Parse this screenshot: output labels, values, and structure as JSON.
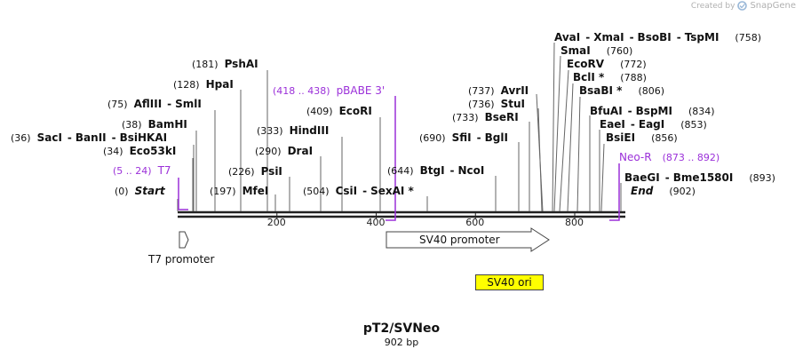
{
  "credit": {
    "created_by": "Created by",
    "brand": "SnapGene"
  },
  "title": "pT2/SVNeo",
  "length_label": "902 bp",
  "sequence": {
    "length": 902
  },
  "axis_ticks": [
    {
      "value": 200,
      "label": "200"
    },
    {
      "value": 400,
      "label": "400"
    },
    {
      "value": 600,
      "label": "600"
    },
    {
      "value": 800,
      "label": "800"
    }
  ],
  "sites": {
    "start": {
      "pos": "(0)",
      "name": "Start"
    },
    "end": {
      "pos": "(902)",
      "name": "End"
    },
    "saci": {
      "pos": "(36)",
      "names": [
        "SacI",
        "BanII",
        "BsiHKAI"
      ]
    },
    "eco53ki": {
      "pos": "(34)",
      "names": [
        "Eco53kI"
      ]
    },
    "bamhi": {
      "pos": "(38)",
      "names": [
        "BamHI"
      ]
    },
    "aflii": {
      "pos": "(75)",
      "names": [
        "AflIII",
        "SmlI"
      ]
    },
    "hpai": {
      "pos": "(128)",
      "names": [
        "HpaI"
      ]
    },
    "pshai": {
      "pos": "(181)",
      "names": [
        "PshAI"
      ]
    },
    "mfei": {
      "pos": "(197)",
      "names": [
        "MfeI"
      ]
    },
    "psii": {
      "pos": "(226)",
      "names": [
        "PsiI"
      ]
    },
    "drai": {
      "pos": "(290)",
      "names": [
        "DraI"
      ]
    },
    "hindiii": {
      "pos": "(333)",
      "names": [
        "HindIII"
      ]
    },
    "ecori": {
      "pos": "(409)",
      "names": [
        "EcoRI"
      ]
    },
    "csii": {
      "pos": "(504)",
      "names": [
        "CsiI",
        "SexAI *"
      ]
    },
    "btgi": {
      "pos": "(644)",
      "names": [
        "BtgI",
        "NcoI"
      ]
    },
    "sfii": {
      "pos": "(690)",
      "names": [
        "SfiI",
        "BglI"
      ]
    },
    "bseri": {
      "pos": "(733)",
      "names": [
        "BseRI"
      ]
    },
    "stui": {
      "pos": "(736)",
      "names": [
        "StuI"
      ]
    },
    "avrii": {
      "pos": "(737)",
      "names": [
        "AvrII"
      ]
    },
    "avai": {
      "pos": "(758)",
      "names": [
        "AvaI",
        "XmaI",
        "BsoBI",
        "TspMI"
      ]
    },
    "smai": {
      "pos": "(760)",
      "names": [
        "SmaI"
      ]
    },
    "ecorv": {
      "pos": "(772)",
      "names": [
        "EcoRV"
      ]
    },
    "bcli": {
      "pos": "(788)",
      "names": [
        "BclI *"
      ]
    },
    "bsabi": {
      "pos": "(806)",
      "names": [
        "BsaBI *"
      ]
    },
    "bfuai": {
      "pos": "(834)",
      "names": [
        "BfuAI",
        "BspMI"
      ]
    },
    "eaei": {
      "pos": "(853)",
      "names": [
        "EaeI",
        "EagI"
      ]
    },
    "bsiei": {
      "pos": "(856)",
      "names": [
        "BsiEI"
      ]
    },
    "baegi": {
      "pos": "(893)",
      "names": [
        "BaeGI",
        "Bme1580I"
      ]
    }
  },
  "primers": {
    "t7": {
      "range": "(5 .. 24)",
      "name": "T7"
    },
    "pbabe3": {
      "range": "(418 .. 438)",
      "name": "pBABE 3'"
    },
    "neor": {
      "range": "(873 .. 892)",
      "name": "Neo-R"
    }
  },
  "features": {
    "t7_promoter": "T7 promoter",
    "sv40_promoter": "SV40 promoter",
    "sv40_ori": "SV40 ori"
  },
  "colors": {
    "primer": "#9b30d9",
    "ori_fill": "#ffff00"
  }
}
